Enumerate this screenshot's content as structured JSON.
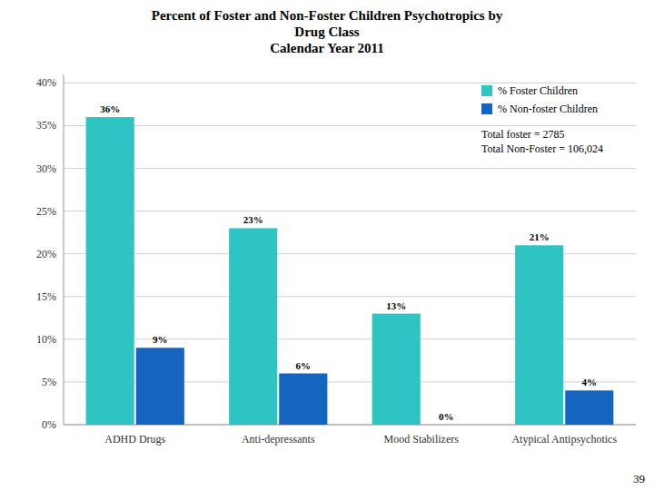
{
  "chart_data": {
    "type": "bar",
    "title": "Percent of Foster and Non-Foster Children Psychotropics by\nDrug Class\nCalendar Year 2011",
    "categories": [
      "ADHD Drugs",
      "Anti-depressants",
      "Mood Stabilizers",
      "Atypical Antipsychotics"
    ],
    "series": [
      {
        "name": "% Foster Children",
        "color": "#2EC4C4",
        "values": [
          36,
          23,
          13,
          21
        ],
        "value_labels": [
          "36%",
          "23%",
          "13%",
          "21%"
        ]
      },
      {
        "name": "% Non-foster Children",
        "color": "#1565C0",
        "values": [
          9,
          6,
          0,
          4
        ],
        "value_labels": [
          "9%",
          "6%",
          "0%",
          "4%"
        ]
      }
    ],
    "ylim": [
      0,
      41
    ],
    "yticks": [
      {
        "value": 0,
        "label": "0%"
      },
      {
        "value": 5,
        "label": "5%"
      },
      {
        "value": 10,
        "label": "10%"
      },
      {
        "value": 15,
        "label": "15%"
      },
      {
        "value": 20,
        "label": "20%"
      },
      {
        "value": 25,
        "label": "25%"
      },
      {
        "value": 30,
        "label": "30%"
      },
      {
        "value": 35,
        "label": "35%"
      },
      {
        "value": 40,
        "label": "40%"
      }
    ],
    "annotations": [
      "Total foster = 2785",
      "Total Non-Foster = 106,024"
    ],
    "page_number": "39",
    "grid": true,
    "legend": "upper right",
    "data_labels": true
  }
}
